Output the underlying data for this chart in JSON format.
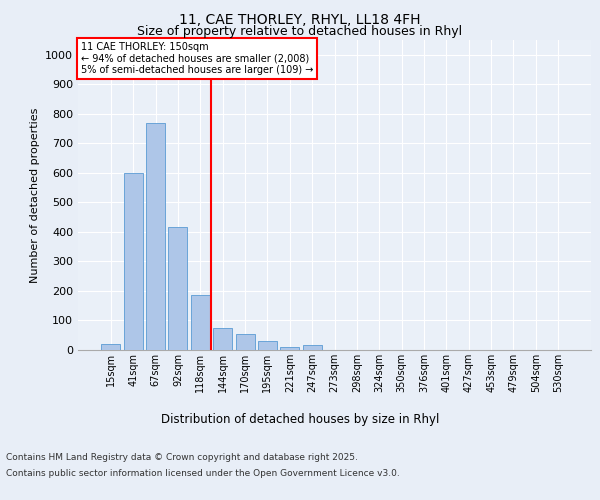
{
  "title_line1": "11, CAE THORLEY, RHYL, LL18 4FH",
  "title_line2": "Size of property relative to detached houses in Rhyl",
  "xlabel": "Distribution of detached houses by size in Rhyl",
  "ylabel": "Number of detached properties",
  "categories": [
    "15sqm",
    "41sqm",
    "67sqm",
    "92sqm",
    "118sqm",
    "144sqm",
    "170sqm",
    "195sqm",
    "221sqm",
    "247sqm",
    "273sqm",
    "298sqm",
    "324sqm",
    "350sqm",
    "376sqm",
    "401sqm",
    "427sqm",
    "453sqm",
    "479sqm",
    "504sqm",
    "530sqm"
  ],
  "values": [
    20,
    600,
    770,
    415,
    185,
    75,
    55,
    30,
    10,
    18,
    0,
    0,
    0,
    0,
    0,
    0,
    0,
    0,
    0,
    0,
    0
  ],
  "bar_color": "#aec6e8",
  "bar_edge_color": "#5a9bd4",
  "redline_index": 5,
  "annotation_title": "11 CAE THORLEY: 150sqm",
  "annotation_line2": "← 94% of detached houses are smaller (2,008)",
  "annotation_line3": "5% of semi-detached houses are larger (109) →",
  "ylim": [
    0,
    1050
  ],
  "yticks": [
    0,
    100,
    200,
    300,
    400,
    500,
    600,
    700,
    800,
    900,
    1000
  ],
  "footer_line1": "Contains HM Land Registry data © Crown copyright and database right 2025.",
  "footer_line2": "Contains public sector information licensed under the Open Government Licence v3.0.",
  "bg_color": "#e8eef7",
  "plot_bg_color": "#eaf0f8"
}
